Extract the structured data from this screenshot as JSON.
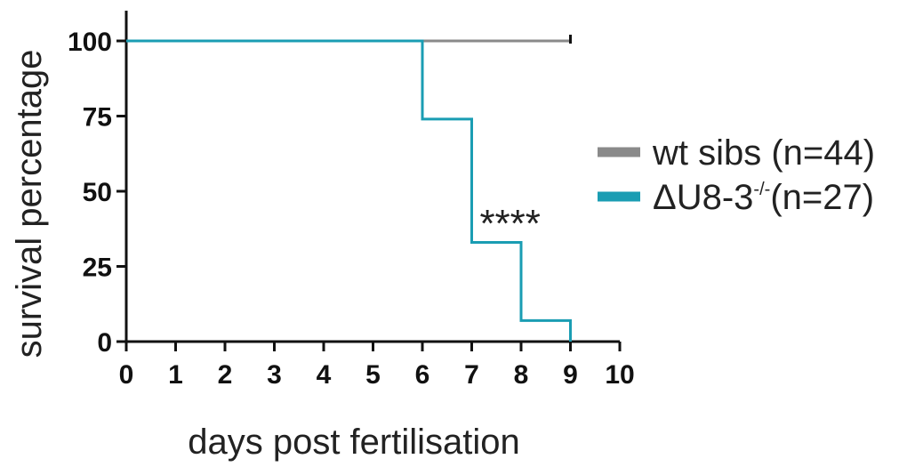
{
  "chart_data": {
    "type": "line",
    "step": true,
    "xlabel": "days post fertilisation",
    "ylabel": "survival percentage",
    "xlim": [
      0,
      10
    ],
    "ylim": [
      0,
      100
    ],
    "x_ticks": [
      "0",
      "1",
      "2",
      "3",
      "4",
      "5",
      "6",
      "7",
      "8",
      "9",
      "10"
    ],
    "y_ticks": [
      "0",
      "25",
      "50",
      "75",
      "100"
    ],
    "grid": false,
    "legend_position": "right",
    "series": [
      {
        "name": "wt sibs (n=44)",
        "color": "#8a8a8a",
        "x": [
          0,
          9
        ],
        "y": [
          100,
          100
        ],
        "censored_end": true
      },
      {
        "name": "ΔU8-3^-/-(n=27)",
        "color": "#1a9db3",
        "x": [
          0,
          6,
          7,
          8,
          9
        ],
        "y": [
          100,
          74,
          33,
          7,
          0
        ]
      }
    ],
    "annotations": [
      {
        "text": "****",
        "x": 7.4,
        "y": 42
      }
    ]
  },
  "legend": {
    "items": [
      {
        "text": "wt sibs (n=44)"
      },
      {
        "base": "ΔU8-3",
        "sup": "-/-",
        "rest": "(n=27)"
      }
    ]
  }
}
